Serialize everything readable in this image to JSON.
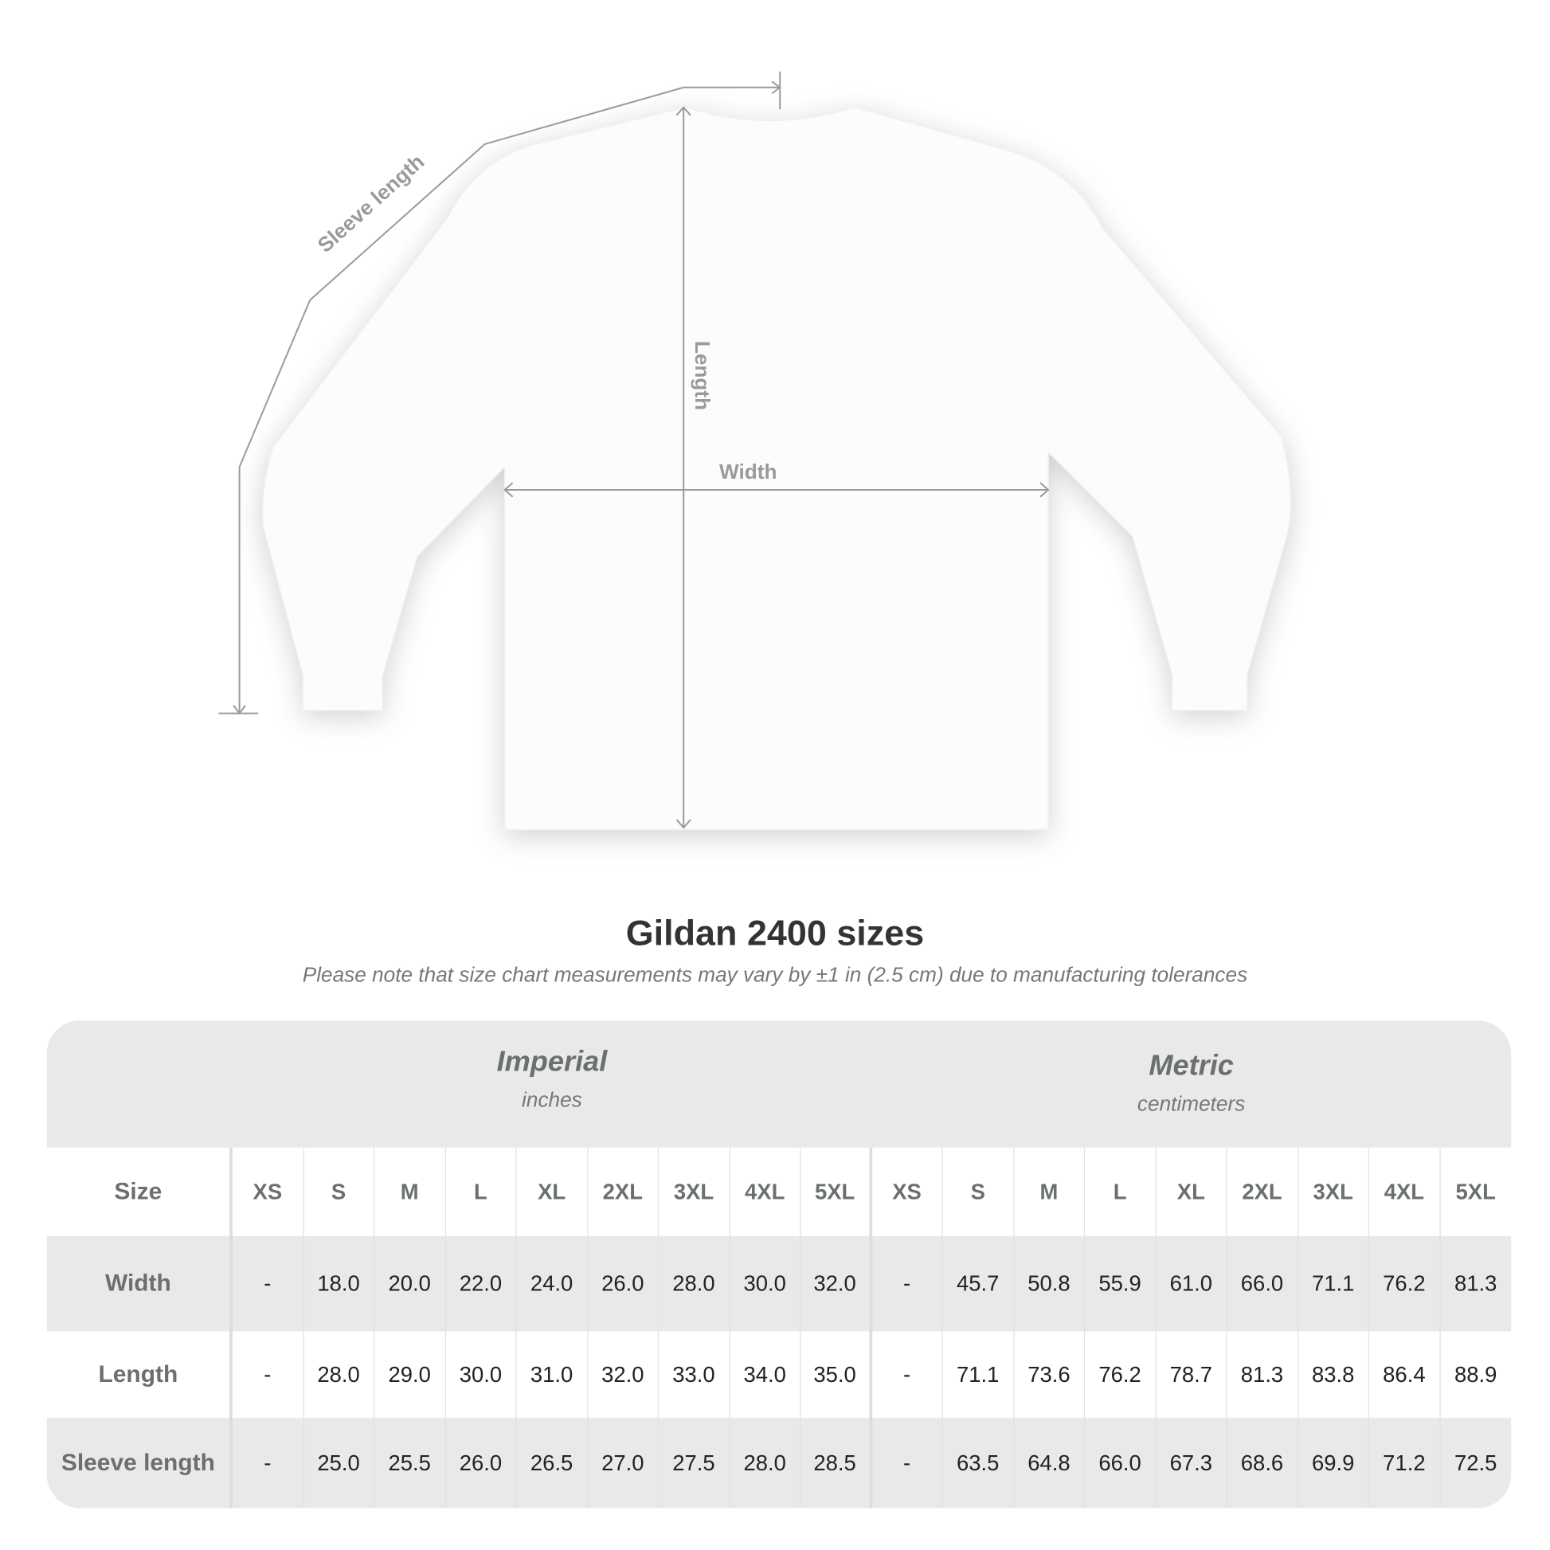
{
  "diagram": {
    "labels": {
      "sleeve": "Sleeve length",
      "length": "Length",
      "width": "Width"
    },
    "line_color": "#9a9a9a"
  },
  "title": "Gildan 2400 sizes",
  "subtitle": "Please note that size chart measurements may vary by ±1 in (2.5 cm) due to manufacturing tolerances",
  "table": {
    "imperial": {
      "name": "Imperial",
      "unit": "inches"
    },
    "metric": {
      "name": "Metric",
      "unit": "centimeters"
    },
    "size_label": "Size",
    "sizes": [
      "XS",
      "S",
      "M",
      "L",
      "XL",
      "2XL",
      "3XL",
      "4XL",
      "5XL",
      "XS",
      "S",
      "M",
      "L",
      "XL",
      "2XL",
      "3XL",
      "4XL",
      "5XL"
    ],
    "rows": [
      {
        "label": "Width",
        "values": [
          "-",
          "18.0",
          "20.0",
          "22.0",
          "24.0",
          "26.0",
          "28.0",
          "30.0",
          "32.0",
          "-",
          "45.7",
          "50.8",
          "55.9",
          "61.0",
          "66.0",
          "71.1",
          "76.2",
          "81.3"
        ]
      },
      {
        "label": "Length",
        "values": [
          "-",
          "28.0",
          "29.0",
          "30.0",
          "31.0",
          "32.0",
          "33.0",
          "34.0",
          "35.0",
          "-",
          "71.1",
          "73.6",
          "76.2",
          "78.7",
          "81.3",
          "83.8",
          "86.4",
          "88.9"
        ]
      },
      {
        "label": "Sleeve length",
        "values": [
          "-",
          "25.0",
          "25.5",
          "26.0",
          "26.5",
          "27.0",
          "27.5",
          "28.0",
          "28.5",
          "-",
          "63.5",
          "64.8",
          "66.0",
          "67.3",
          "68.6",
          "69.9",
          "71.2",
          "72.5"
        ]
      }
    ]
  }
}
